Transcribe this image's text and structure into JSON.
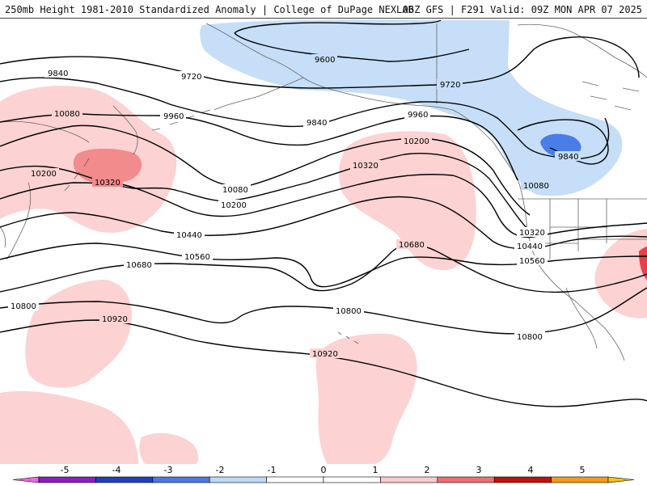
{
  "header": {
    "left": "250mb Height 1981-2010 Standardized Anomaly | College of DuPage NEXLAB",
    "right": "06Z GFS | F291 Valid: 09Z MON APR 07 2025"
  },
  "contour_labels": {
    "c9600": "9600",
    "c9720a": "9720",
    "c9720b": "9720",
    "c9840a": "9840",
    "c9840b": "9840",
    "c9840c": "9840",
    "c9960a": "9960",
    "c9960b": "9960",
    "c10080a": "10080",
    "c10080b": "10080",
    "c10080c": "10080",
    "c10200a": "10200",
    "c10200b": "10200",
    "c10200c": "10200",
    "c10320a": "10320",
    "c10320b": "10320",
    "c10320c": "10320",
    "c10440a": "10440",
    "c10440b": "10440",
    "c10560a": "10560",
    "c10560b": "10560",
    "c10680a": "10680",
    "c10680b": "10680",
    "c10800a": "10800",
    "c10800b": "10800",
    "c10800c": "10800",
    "c10920a": "10920",
    "c10920b": "10920"
  },
  "colorbar": {
    "tick_labels": [
      "-5",
      "-4",
      "-3",
      "-2",
      "-1",
      "0",
      "1",
      "2",
      "3",
      "4",
      "5"
    ],
    "colors": [
      "#e86be0",
      "#8a1fc4",
      "#1f3fbf",
      "#4a78e6",
      "#bcd9f5",
      "#ffffff",
      "#ffffff",
      "#fbcaca",
      "#ef7070",
      "#c41010",
      "#f59a1a",
      "#f5c21a"
    ]
  },
  "colors": {
    "positive_weak": "#fcd2d2",
    "positive_mid": "#f28b8b",
    "positive_strong": "#e8404a",
    "negative_weak": "#c6def7",
    "negative_mid": "#4b7de8",
    "contour": "#000000",
    "coastline": "#666666"
  }
}
